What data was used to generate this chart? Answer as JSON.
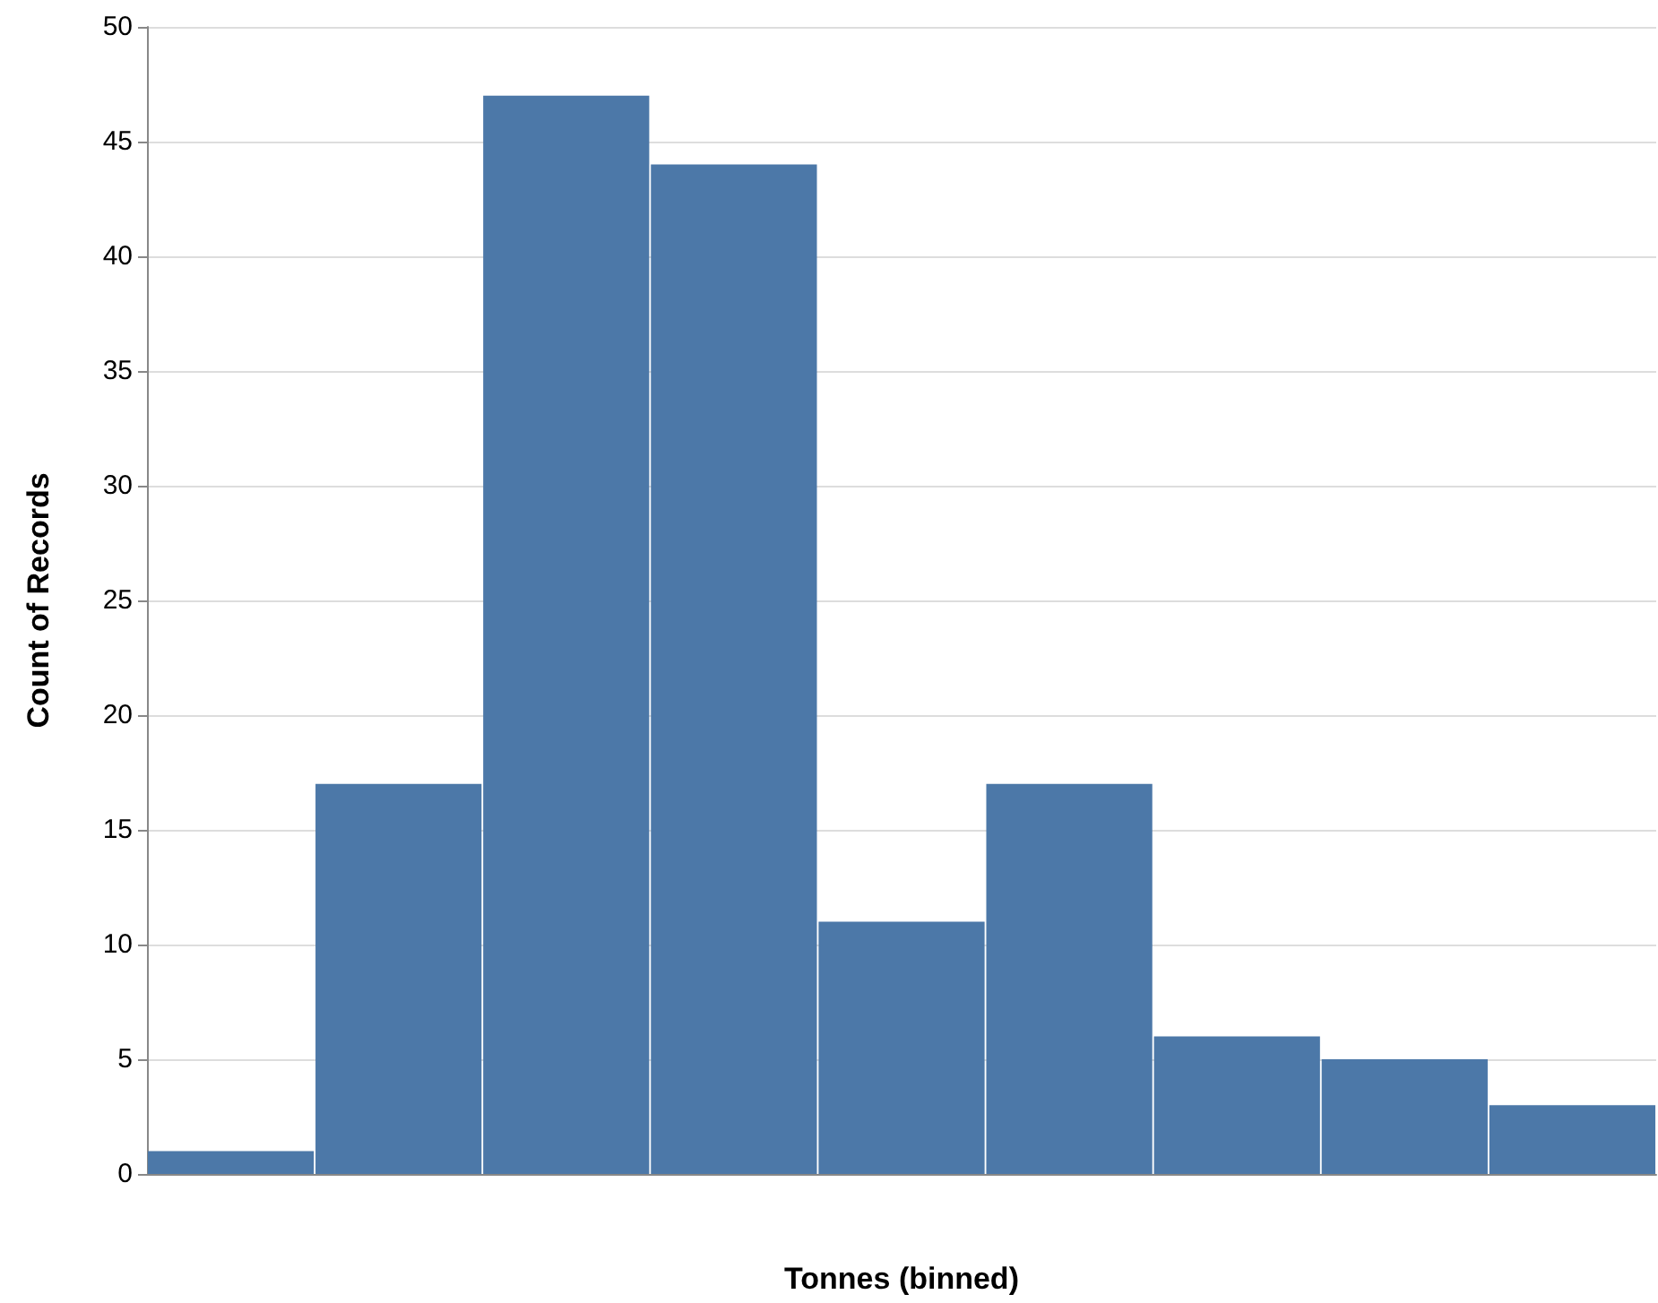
{
  "chart_data": {
    "type": "bar",
    "xlabel": "Tonnes (binned)",
    "ylabel": "Count of Records",
    "categories": [
      null,
      null,
      null,
      null,
      null,
      null,
      null,
      null,
      null
    ],
    "values": [
      1,
      17,
      47,
      44,
      11,
      17,
      6,
      5,
      3
    ],
    "color": "#4c78a8",
    "ylim": [
      0,
      50
    ],
    "yticks": [
      0,
      5,
      10,
      15,
      20,
      25,
      30,
      35,
      40,
      45,
      50
    ],
    "grid": "y"
  }
}
